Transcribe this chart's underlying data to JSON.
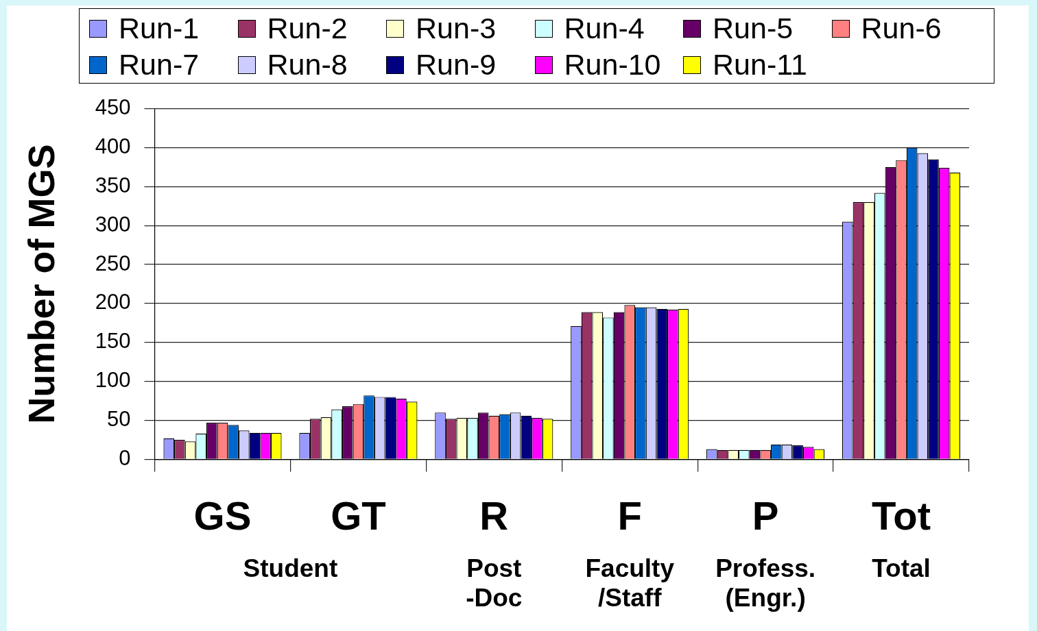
{
  "chart_data": {
    "type": "bar",
    "ylabel": "Number of MGS",
    "categories": [
      "GS",
      "GT",
      "R",
      "F",
      "P",
      "Tot"
    ],
    "series": [
      {
        "name": "Run-1",
        "color": "#9999ff",
        "values": [
          27,
          34,
          60,
          171,
          13,
          305
        ]
      },
      {
        "name": "Run-2",
        "color": "#993366",
        "values": [
          25,
          52,
          52,
          189,
          12,
          330
        ]
      },
      {
        "name": "Run-3",
        "color": "#ffffcc",
        "values": [
          23,
          54,
          53,
          189,
          12,
          330
        ]
      },
      {
        "name": "Run-4",
        "color": "#ccffff",
        "values": [
          33,
          64,
          53,
          182,
          12,
          342
        ]
      },
      {
        "name": "Run-5",
        "color": "#660066",
        "values": [
          47,
          68,
          60,
          189,
          12,
          375
        ]
      },
      {
        "name": "Run-6",
        "color": "#ff8080",
        "values": [
          47,
          71,
          56,
          198,
          12,
          384
        ]
      },
      {
        "name": "Run-7",
        "color": "#0066cc",
        "values": [
          44,
          82,
          58,
          195,
          19,
          400
        ]
      },
      {
        "name": "Run-8",
        "color": "#ccccff",
        "values": [
          37,
          80,
          60,
          195,
          19,
          393
        ]
      },
      {
        "name": "Run-9",
        "color": "#000080",
        "values": [
          34,
          80,
          56,
          193,
          18,
          385
        ]
      },
      {
        "name": "Run-10",
        "color": "#ff00ff",
        "values": [
          34,
          78,
          53,
          192,
          16,
          374
        ]
      },
      {
        "name": "Run-11",
        "color": "#ffff00",
        "values": [
          34,
          74,
          52,
          193,
          13,
          368
        ]
      }
    ],
    "ylim": [
      0,
      450
    ],
    "yticks": [
      0,
      50,
      100,
      150,
      200,
      250,
      300,
      350,
      400,
      450
    ],
    "grid": "y",
    "legend": "top",
    "annotations": [
      "Student",
      "Post\n-Doc",
      "Faculty\n/Staff",
      "Profess.\n(Engr.)",
      "Total"
    ]
  }
}
